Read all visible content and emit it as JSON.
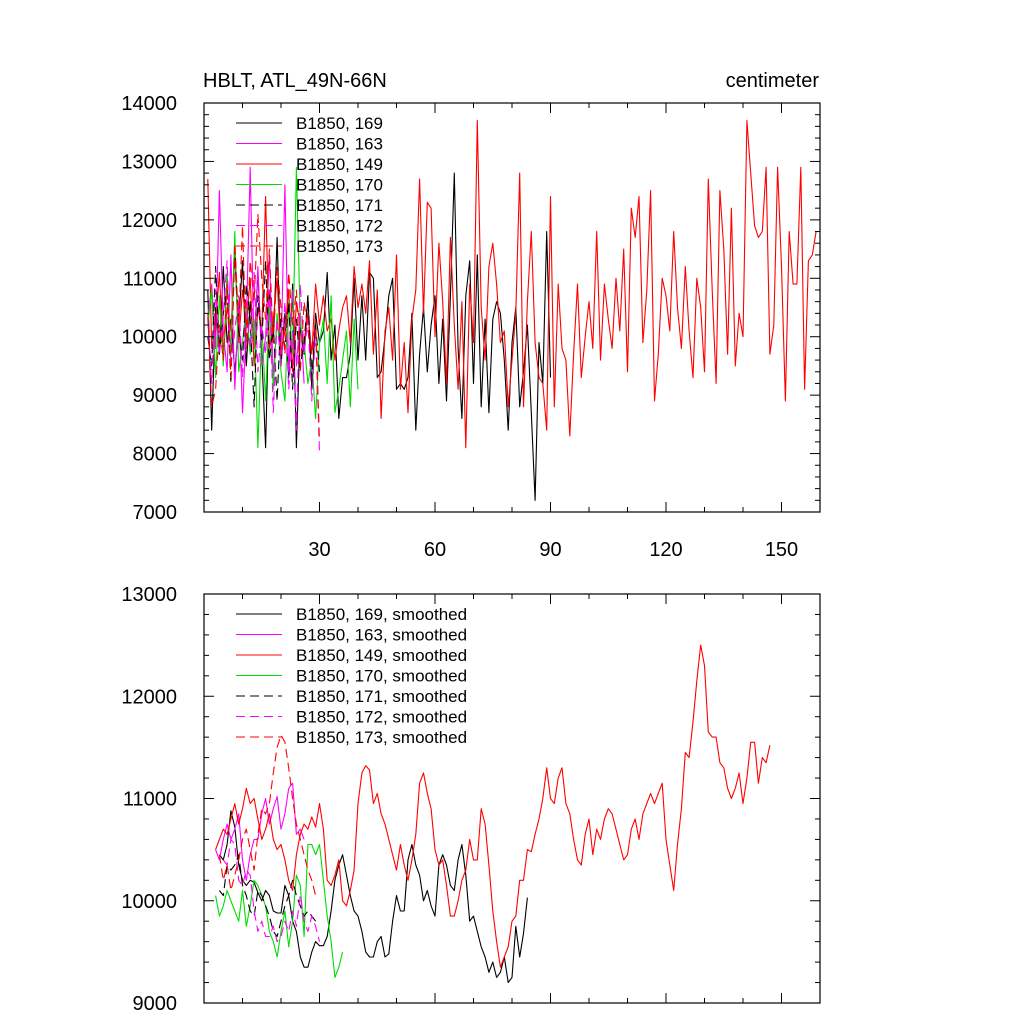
{
  "chart_data": [
    {
      "type": "line",
      "title": "HBLT, ATL_49N-66N",
      "units": "centimeter",
      "xlim": [
        0,
        160
      ],
      "ylim": [
        7000,
        14000
      ],
      "x_ticks": [
        30,
        60,
        90,
        120,
        150
      ],
      "x_tick_labels": [
        "30",
        "60",
        "90",
        "120",
        "150"
      ],
      "y_ticks": [
        7000,
        8000,
        9000,
        10000,
        11000,
        12000,
        13000,
        14000
      ],
      "y_tick_labels": [
        "7000",
        "8000",
        "9000",
        "10000",
        "11000",
        "12000",
        "13000",
        "14000"
      ],
      "legend": [
        {
          "label": "B1850, 169",
          "color": "#000000",
          "dash": false
        },
        {
          "label": "B1850, 163",
          "color": "#ff00ff",
          "dash": false
        },
        {
          "label": "B1850, 149",
          "color": "#ff0000",
          "dash": false
        },
        {
          "label": "B1850, 170",
          "color": "#00dd00",
          "dash": false
        },
        {
          "label": "B1850, 171",
          "color": "#000000",
          "dash": true
        },
        {
          "label": "B1850, 172",
          "color": "#ff00ff",
          "dash": true
        },
        {
          "label": "B1850, 173",
          "color": "#ff0000",
          "dash": true
        }
      ],
      "series": [
        {
          "name": "B1850, 169",
          "color": "#000000",
          "dash": false,
          "x0": 1,
          "values": [
            10800,
            8400,
            10500,
            9700,
            11200,
            9900,
            10300,
            9400,
            10200,
            11300,
            9500,
            10600,
            9800,
            11100,
            9700,
            8100,
            10800,
            9900,
            11700,
            9500,
            10400,
            9300,
            10900,
            8100,
            10200,
            9700,
            10700,
            9100,
            10400,
            9900,
            10100,
            11100,
            9600,
            10200,
            8600,
            9300,
            9300,
            9700,
            11000,
            9600,
            10700,
            9600,
            11100,
            11000,
            9300,
            9400,
            10000,
            10700,
            11000,
            9100,
            9200,
            9100,
            9300,
            10400,
            8400,
            9700,
            10500,
            9400,
            10200,
            10700,
            9200,
            10300,
            8900,
            10700,
            12800,
            9800,
            8600,
            10700,
            11300,
            9200,
            11400,
            8800,
            10300,
            8700,
            10300,
            10600,
            10400,
            9600,
            8400,
            9900,
            10500,
            8800,
            9400,
            10200,
            8700,
            7200,
            9900,
            9200,
            11800,
            9300
          ]
        },
        {
          "name": "B1850, 163",
          "color": "#ff00ff",
          "dash": false,
          "x0": 1,
          "values": [
            10300,
            10900,
            9800,
            12500,
            10100,
            9400,
            11400,
            9100,
            10600,
            8700,
            10200,
            12900,
            9800,
            11200,
            9500,
            10000,
            11400,
            9300,
            10300,
            9700,
            12600,
            9400,
            10800,
            9500,
            10400,
            9200
          ]
        },
        {
          "name": "B1850, 149",
          "color": "#ff0000",
          "dash": false,
          "x0": 1,
          "values": [
            12700,
            9800,
            10200,
            11100,
            9700,
            10500,
            10100,
            11400,
            9900,
            10800,
            10200,
            11000,
            9500,
            10500,
            10100,
            12400,
            9800,
            10300,
            11000,
            9700,
            10100,
            10800,
            9400,
            10600,
            10200,
            9900,
            10400,
            9700,
            10900,
            10200,
            10700,
            10100,
            10300,
            9600,
            10100,
            10500,
            10700,
            9900,
            11200,
            10500,
            10900,
            10400,
            11300,
            9700,
            10800,
            8600,
            10100,
            10500,
            9600,
            11400,
            9100,
            9900,
            8700,
            10300,
            10800,
            12700,
            10400,
            12300,
            12200,
            10000,
            11600,
            10600,
            9200,
            11700,
            10200,
            9100,
            10600,
            8100,
            10900,
            9900,
            13700,
            10500,
            9600,
            11200,
            11600,
            10900,
            9900,
            10100,
            8800,
            9600,
            10400,
            12800,
            8800,
            10600,
            11800,
            9900,
            9300,
            9200,
            8400,
            12400,
            8800,
            10900,
            9800,
            9600,
            8300,
            9700,
            10900,
            9300,
            10000,
            10600,
            9800,
            11800,
            9600,
            10900,
            10300,
            9800,
            11000,
            10100,
            11500,
            9400,
            12200,
            11700,
            12400,
            9900,
            10800,
            12500,
            8900,
            9700,
            11000,
            10700,
            10100,
            11800,
            10500,
            9800,
            11200,
            10100,
            9300,
            11000,
            10500,
            9400,
            12700,
            10800,
            9200,
            12500,
            11500,
            9700,
            12200,
            9500,
            10400,
            10000,
            13700,
            12800,
            11900,
            11700,
            11800,
            12900,
            9700,
            10200,
            12900,
            11200,
            8900,
            11800,
            10900,
            10900,
            12900,
            9100,
            11300,
            11400,
            11800
          ]
        },
        {
          "name": "B1850, 170",
          "color": "#00dd00",
          "dash": false,
          "x0": 1,
          "values": [
            10200,
            10800,
            9300,
            10700,
            9500,
            11100,
            9700,
            11800,
            9400,
            9900,
            10500,
            9700,
            10300,
            8100,
            10200,
            8900,
            10600,
            9100,
            10400,
            9400,
            8900,
            10600,
            9700,
            12900,
            10200,
            9900,
            9200,
            9600,
            8600,
            9900,
            10300,
            9200,
            10700,
            8700,
            9100,
            9600,
            10100,
            8800,
            10300,
            9100
          ]
        },
        {
          "name": "B1850, 171",
          "color": "#000000",
          "dash": true,
          "x0": 1,
          "values": [
            10000,
            9500,
            11200,
            9700,
            10400,
            10800,
            9200,
            11500,
            10100,
            9600,
            10900,
            10300,
            8800,
            10700,
            9900,
            11300,
            9600,
            10200,
            8900,
            10400,
            9800,
            10600,
            9100,
            10300,
            9500,
            9900,
            10700,
            9300,
            10200,
            9400
          ]
        },
        {
          "name": "B1850, 172",
          "color": "#ff00ff",
          "dash": true,
          "x0": 1,
          "values": [
            10300,
            9200,
            10800,
            9700,
            10400,
            11300,
            9500,
            10100,
            10700,
            9300,
            10600,
            9800,
            11100,
            9400,
            10200,
            9700,
            10800,
            8700,
            10300,
            9500,
            10600,
            9100,
            10100,
            8400,
            10900,
            9700,
            10300,
            8900,
            10100,
            8000
          ]
        },
        {
          "name": "B1850, 173",
          "color": "#ff0000",
          "dash": true,
          "x0": 1,
          "values": [
            10400,
            8800,
            9100,
            10200,
            9600,
            10900,
            9300,
            11600,
            10200,
            11900,
            9800,
            11300,
            10600,
            12100,
            11000,
            10300,
            11500,
            9900,
            11200,
            10500,
            9700,
            11100,
            10200,
            10800,
            9400,
            10600,
            10100,
            9700,
            10300,
            8200
          ]
        }
      ]
    },
    {
      "type": "line",
      "xlim": [
        0,
        160
      ],
      "ylim": [
        9000,
        13000
      ],
      "x_ticks": [
        30,
        60,
        90,
        120,
        150
      ],
      "y_ticks": [
        9000,
        10000,
        11000,
        12000,
        13000
      ],
      "y_tick_labels": [
        "9000",
        "10000",
        "11000",
        "12000",
        "13000"
      ],
      "legend": [
        {
          "label": "B1850, 169, smoothed",
          "color": "#000000",
          "dash": false
        },
        {
          "label": "B1850, 163, smoothed",
          "color": "#ff00ff",
          "dash": false
        },
        {
          "label": "B1850, 149, smoothed",
          "color": "#ff0000",
          "dash": false
        },
        {
          "label": "B1850, 170, smoothed",
          "color": "#00dd00",
          "dash": false
        },
        {
          "label": "B1850, 171, smoothed",
          "color": "#000000",
          "dash": true
        },
        {
          "label": "B1850, 172, smoothed",
          "color": "#ff00ff",
          "dash": true
        },
        {
          "label": "B1850, 173, smoothed",
          "color": "#ff0000",
          "dash": true
        }
      ],
      "series": [
        {
          "name": "B1850, 169, smoothed",
          "color": "#000000",
          "dash": false,
          "x0": 4,
          "values": [
            10450,
            10400,
            10550,
            10880,
            10720,
            10350,
            10200,
            10150,
            10200,
            10180,
            10080,
            10000,
            10100,
            10050,
            9900,
            9880,
            9880,
            10150,
            10050,
            9800,
            9700,
            9450,
            9350,
            9350,
            9500,
            9600,
            9560,
            9560,
            9650,
            9900,
            10200,
            10350,
            10450,
            10250,
            10050,
            9900,
            9850,
            9700,
            9500,
            9450,
            9450,
            9600,
            9650,
            9450,
            9480,
            9800,
            10050,
            9900,
            9900,
            10400,
            10550,
            10350,
            10250,
            10000,
            10100,
            9950,
            9850,
            10350,
            10450,
            10350,
            10150,
            10100,
            10400,
            10550,
            10250,
            9800,
            9850,
            9700,
            9550,
            9450,
            9300,
            9400,
            9250,
            9300,
            9450,
            9200,
            9250,
            9750,
            9450,
            9680,
            10030
          ]
        },
        {
          "name": "B1850, 163, smoothed",
          "color": "#ff00ff",
          "dash": false,
          "x0": 3,
          "values": [
            10500,
            10400,
            10600,
            10750,
            10600,
            10700,
            10850,
            10400,
            10200,
            10450,
            10600,
            10600,
            10850,
            11000,
            10750,
            10900,
            11020,
            10700,
            10850,
            11100,
            11150,
            10650,
            10700,
            10600
          ]
        },
        {
          "name": "B1850, 149, smoothed",
          "color": "#ff0000",
          "dash": false,
          "x0": 3,
          "values": [
            10500,
            10600,
            10700,
            10650,
            10800,
            10950,
            10750,
            10900,
            11100,
            10950,
            11000,
            10800,
            10600,
            10700,
            10850,
            10600,
            10500,
            10550,
            10400,
            10200,
            10100,
            10450,
            10650,
            10750,
            10700,
            10820,
            10720,
            10950,
            10700,
            10200,
            10150,
            10250,
            10400,
            10000,
            9950,
            10100,
            10300,
            10950,
            11250,
            11320,
            11280,
            10950,
            11050,
            10850,
            10750,
            10600,
            10450,
            10300,
            10550,
            10350,
            10200,
            10400,
            10650,
            11150,
            11250,
            11050,
            10900,
            10500,
            10350,
            10400,
            10150,
            9850,
            9850,
            10000,
            10200,
            10300,
            10600,
            10400,
            10400,
            10900,
            10750,
            10350,
            9900,
            9600,
            9350,
            9450,
            9550,
            9800,
            9850,
            10200,
            10200,
            10500,
            10480,
            10650,
            10800,
            11000,
            11300,
            11000,
            10950,
            11200,
            11300,
            10950,
            10850,
            10600,
            10400,
            10350,
            10650,
            10800,
            10450,
            10700,
            10600,
            10800,
            10900,
            10850,
            10700,
            10550,
            10400,
            10450,
            10700,
            10800,
            10600,
            10850,
            10950,
            11050,
            10950,
            11050,
            11150,
            10600,
            10350,
            10100,
            10550,
            10900,
            11450,
            11400,
            11750,
            12150,
            12500,
            12300,
            11650,
            11600,
            11600,
            11350,
            11300,
            11100,
            11000,
            11100,
            11250,
            10950,
            11200,
            11550,
            11550,
            11150,
            11400,
            11350,
            11520
          ]
        },
        {
          "name": "B1850, 170, smoothed",
          "color": "#00dd00",
          "dash": false,
          "x0": 3,
          "values": [
            10050,
            9850,
            9950,
            10100,
            10000,
            9900,
            9800,
            10100,
            9750,
            9950,
            10200,
            10150,
            10050,
            9950,
            9700,
            9600,
            9450,
            9700,
            9900,
            9550,
            9800,
            10250,
            10150,
            9650,
            10550,
            10550,
            10450,
            10550,
            10200,
            9850,
            9600,
            9250,
            9350,
            9500
          ]
        },
        {
          "name": "B1850, 171, smoothed",
          "color": "#000000",
          "dash": true,
          "x0": 4,
          "values": [
            10100,
            10050,
            10350,
            10300,
            10350,
            10450,
            10150,
            10050,
            9900,
            9850,
            10100,
            10050,
            9950,
            9850,
            9700,
            9650,
            9800,
            9950,
            10050,
            10200,
            10050,
            9950,
            9850,
            9900,
            9850,
            9800
          ]
        },
        {
          "name": "B1850, 172, smoothed",
          "color": "#ff00ff",
          "dash": true,
          "x0": 5,
          "values": [
            10400,
            10350,
            10600,
            10550,
            10200,
            10150,
            10300,
            10250,
            9900,
            9700,
            9800,
            9650,
            9650,
            9750,
            9600,
            9650,
            9800,
            9700,
            9900,
            9750,
            10050,
            9800,
            9700,
            9850,
            9750,
            9600
          ]
        },
        {
          "name": "B1850, 173, smoothed",
          "color": "#ff0000",
          "dash": true,
          "x0": 4,
          "values": [
            10450,
            10200,
            10350,
            10100,
            10250,
            10400,
            10600,
            10700,
            10500,
            10300,
            10650,
            10900,
            10850,
            10950,
            11250,
            11500,
            11620,
            11550,
            11300,
            11000,
            10750,
            10600,
            10450,
            10300,
            10200,
            10050
          ]
        }
      ]
    }
  ]
}
